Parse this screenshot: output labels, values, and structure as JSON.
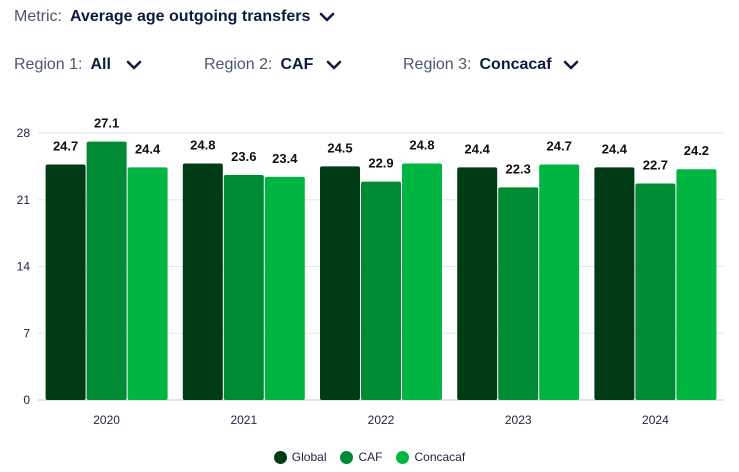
{
  "controls": {
    "metric": {
      "label": "Metric:",
      "value": "Average age outgoing transfers"
    },
    "region1": {
      "label": "Region 1:",
      "value": "All"
    },
    "region2": {
      "label": "Region 2:",
      "value": "CAF"
    },
    "region3": {
      "label": "Region 3:",
      "value": "Concacaf"
    }
  },
  "chart_data": {
    "type": "bar",
    "categories": [
      "2020",
      "2021",
      "2022",
      "2023",
      "2024"
    ],
    "series": [
      {
        "name": "Global",
        "color": "#003b16",
        "values": [
          24.7,
          24.8,
          24.5,
          24.4,
          24.4
        ]
      },
      {
        "name": "CAF",
        "color": "#008a33",
        "values": [
          27.1,
          23.6,
          22.9,
          22.3,
          22.7
        ]
      },
      {
        "name": "Concacaf",
        "color": "#00b542",
        "values": [
          24.4,
          23.4,
          24.8,
          24.7,
          24.2
        ]
      }
    ],
    "yticks": [
      0,
      7,
      14,
      21,
      28
    ],
    "ylim": [
      0,
      28
    ],
    "grid": true,
    "legend_position": "bottom"
  }
}
